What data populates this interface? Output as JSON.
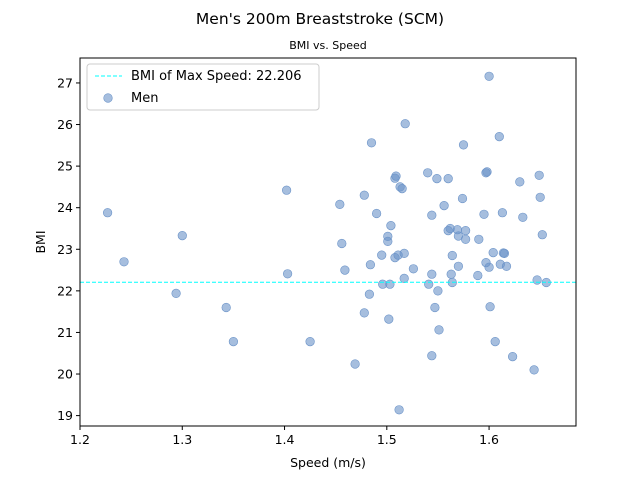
{
  "chart_data": {
    "type": "scatter",
    "title": "Men's 200m Breaststroke (SCM)",
    "subtitle": "BMI vs. Speed",
    "xlabel": "Speed (m/s)",
    "ylabel": "BMI",
    "xlim": [
      1.2,
      1.685
    ],
    "ylim": [
      18.75,
      27.6
    ],
    "xticks": [
      "1.2",
      "1.3",
      "1.4",
      "1.5",
      "1.6"
    ],
    "yticks": [
      "19",
      "20",
      "21",
      "22",
      "23",
      "24",
      "25",
      "26",
      "27"
    ],
    "grid": false,
    "legend_position": "top-left",
    "reference_line": {
      "label": "BMI of Max Speed: 22.206",
      "y": 22.206,
      "color": "#00ffff",
      "style": "dashed"
    },
    "series": [
      {
        "name": "Men",
        "color": "#6b93c8",
        "points": [
          {
            "x": 1.227,
            "y": 23.88
          },
          {
            "x": 1.243,
            "y": 22.7
          },
          {
            "x": 1.294,
            "y": 21.94
          },
          {
            "x": 1.3,
            "y": 23.33
          },
          {
            "x": 1.343,
            "y": 21.6
          },
          {
            "x": 1.35,
            "y": 20.78
          },
          {
            "x": 1.402,
            "y": 24.42
          },
          {
            "x": 1.403,
            "y": 22.41
          },
          {
            "x": 1.425,
            "y": 20.78
          },
          {
            "x": 1.454,
            "y": 24.08
          },
          {
            "x": 1.456,
            "y": 23.14
          },
          {
            "x": 1.459,
            "y": 22.5
          },
          {
            "x": 1.469,
            "y": 20.24
          },
          {
            "x": 1.478,
            "y": 24.3
          },
          {
            "x": 1.478,
            "y": 21.47
          },
          {
            "x": 1.483,
            "y": 21.92
          },
          {
            "x": 1.484,
            "y": 22.63
          },
          {
            "x": 1.485,
            "y": 25.56
          },
          {
            "x": 1.49,
            "y": 23.86
          },
          {
            "x": 1.495,
            "y": 22.86
          },
          {
            "x": 1.496,
            "y": 22.16
          },
          {
            "x": 1.501,
            "y": 23.31
          },
          {
            "x": 1.501,
            "y": 23.19
          },
          {
            "x": 1.502,
            "y": 21.32
          },
          {
            "x": 1.503,
            "y": 22.16
          },
          {
            "x": 1.504,
            "y": 23.57
          },
          {
            "x": 1.508,
            "y": 24.71
          },
          {
            "x": 1.509,
            "y": 24.76
          },
          {
            "x": 1.508,
            "y": 22.8
          },
          {
            "x": 1.511,
            "y": 22.86
          },
          {
            "x": 1.512,
            "y": 19.14
          },
          {
            "x": 1.513,
            "y": 24.5
          },
          {
            "x": 1.515,
            "y": 24.46
          },
          {
            "x": 1.517,
            "y": 22.3
          },
          {
            "x": 1.517,
            "y": 22.9
          },
          {
            "x": 1.518,
            "y": 26.02
          },
          {
            "x": 1.526,
            "y": 22.53
          },
          {
            "x": 1.54,
            "y": 24.84
          },
          {
            "x": 1.541,
            "y": 22.16
          },
          {
            "x": 1.544,
            "y": 23.82
          },
          {
            "x": 1.544,
            "y": 22.4
          },
          {
            "x": 1.544,
            "y": 20.44
          },
          {
            "x": 1.547,
            "y": 21.6
          },
          {
            "x": 1.549,
            "y": 24.7
          },
          {
            "x": 1.55,
            "y": 22.0
          },
          {
            "x": 1.551,
            "y": 21.06
          },
          {
            "x": 1.556,
            "y": 24.05
          },
          {
            "x": 1.56,
            "y": 24.7
          },
          {
            "x": 1.56,
            "y": 23.45
          },
          {
            "x": 1.562,
            "y": 23.5
          },
          {
            "x": 1.563,
            "y": 22.4
          },
          {
            "x": 1.564,
            "y": 22.2
          },
          {
            "x": 1.564,
            "y": 22.85
          },
          {
            "x": 1.569,
            "y": 23.47
          },
          {
            "x": 1.57,
            "y": 23.32
          },
          {
            "x": 1.57,
            "y": 22.59
          },
          {
            "x": 1.574,
            "y": 24.22
          },
          {
            "x": 1.575,
            "y": 25.51
          },
          {
            "x": 1.577,
            "y": 23.45
          },
          {
            "x": 1.577,
            "y": 23.24
          },
          {
            "x": 1.589,
            "y": 22.37
          },
          {
            "x": 1.59,
            "y": 23.24
          },
          {
            "x": 1.595,
            "y": 23.84
          },
          {
            "x": 1.597,
            "y": 24.84
          },
          {
            "x": 1.598,
            "y": 24.86
          },
          {
            "x": 1.597,
            "y": 22.68
          },
          {
            "x": 1.6,
            "y": 22.57
          },
          {
            "x": 1.6,
            "y": 27.16
          },
          {
            "x": 1.601,
            "y": 21.62
          },
          {
            "x": 1.604,
            "y": 22.92
          },
          {
            "x": 1.606,
            "y": 20.78
          },
          {
            "x": 1.61,
            "y": 25.71
          },
          {
            "x": 1.611,
            "y": 22.64
          },
          {
            "x": 1.613,
            "y": 23.88
          },
          {
            "x": 1.614,
            "y": 22.91
          },
          {
            "x": 1.615,
            "y": 22.9
          },
          {
            "x": 1.617,
            "y": 22.59
          },
          {
            "x": 1.623,
            "y": 20.42
          },
          {
            "x": 1.63,
            "y": 24.62
          },
          {
            "x": 1.633,
            "y": 23.77
          },
          {
            "x": 1.644,
            "y": 20.1
          },
          {
            "x": 1.647,
            "y": 22.26
          },
          {
            "x": 1.649,
            "y": 24.78
          },
          {
            "x": 1.65,
            "y": 24.25
          },
          {
            "x": 1.652,
            "y": 23.35
          },
          {
            "x": 1.656,
            "y": 22.2
          }
        ]
      }
    ]
  }
}
